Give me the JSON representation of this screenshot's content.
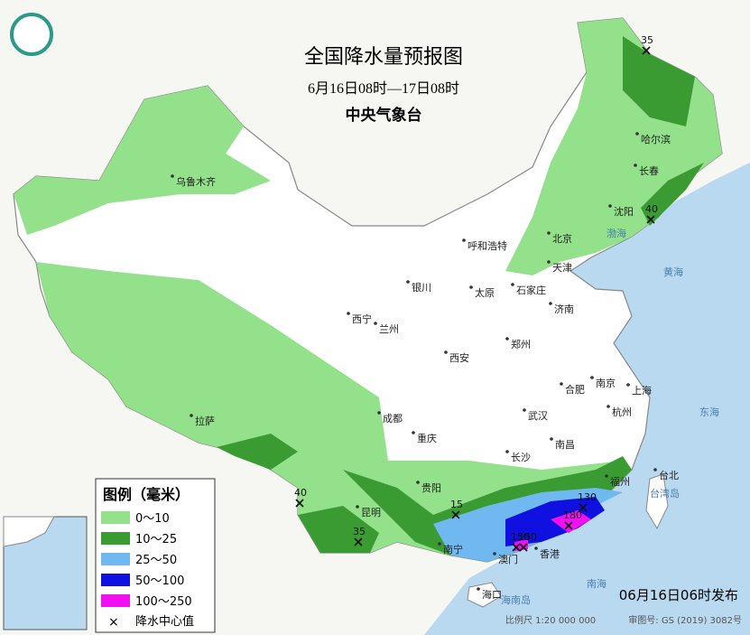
{
  "header": {
    "title": "全国降水量预报图",
    "subtitle": "6月16日08时—17日08时",
    "issuer": "中央气象台"
  },
  "legend": {
    "title": "图例（毫米）",
    "items": [
      {
        "label": "0～10",
        "color": "#93e18a"
      },
      {
        "label": "10～25",
        "color": "#3a9b32"
      },
      {
        "label": "25～50",
        "color": "#6fb8f0"
      },
      {
        "label": "50～100",
        "color": "#1010e0"
      },
      {
        "label": "100～250",
        "color": "#f010f0"
      }
    ],
    "center_label": "降水中心值"
  },
  "cities": [
    "乌鲁木齐",
    "哈尔滨",
    "长春",
    "沈阳",
    "北京",
    "天津",
    "呼和浩特",
    "石家庄",
    "太原",
    "银川",
    "西宁",
    "兰州",
    "济南",
    "郑州",
    "西安",
    "合肥",
    "南京",
    "上海",
    "武汉",
    "杭州",
    "成都",
    "重庆",
    "拉萨",
    "长沙",
    "南昌",
    "福州",
    "贵阳",
    "昆明",
    "南宁",
    "澳门",
    "香港",
    "海口",
    "台北"
  ],
  "centers": [
    35,
    40,
    40,
    15,
    35,
    150,
    180,
    130,
    150
  ],
  "seas": [
    "渤海",
    "黄海",
    "东海",
    "南海",
    "台湾岛",
    "海南岛"
  ],
  "footer": {
    "release": "06月16日06时发布",
    "scale": "比例尺 1:20 000 000",
    "map_number": "审图号: GS (2019) 3082号"
  }
}
